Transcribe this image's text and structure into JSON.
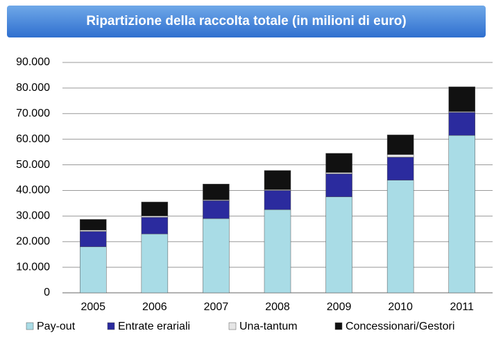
{
  "chart_data": {
    "type": "stacked_bar",
    "title": "Ripartizione della raccolta totale (in milioni di euro)",
    "categories": [
      "2005",
      "2006",
      "2007",
      "2008",
      "2009",
      "2010",
      "2011"
    ],
    "series": [
      {
        "name": "Pay-out",
        "color": "#a9dce6",
        "values": [
          18000,
          23000,
          29000,
          32500,
          37500,
          44000,
          61500
        ]
      },
      {
        "name": "Entrate erariali",
        "color": "#2b2b9e",
        "values": [
          6000,
          6500,
          7000,
          7500,
          9000,
          9000,
          9000
        ]
      },
      {
        "name": "Una-tantum",
        "color": "#e6e6e6",
        "values": [
          500,
          500,
          300,
          300,
          500,
          1000,
          300
        ]
      },
      {
        "name": "Concessionari/Gestori",
        "color": "#111111",
        "values": [
          4200,
          5500,
          6200,
          7500,
          7500,
          7700,
          9700
        ]
      }
    ],
    "ylim": [
      0,
      90000
    ],
    "yticks": [
      0,
      {
        "value": 10000,
        "label": "10.000"
      },
      {
        "value": 20000,
        "label": "20.000"
      },
      {
        "value": 30000,
        "label": "30.000"
      },
      {
        "value": 40000,
        "label": "40.000"
      },
      {
        "value": 50000,
        "label": "50.000"
      },
      {
        "value": 60000,
        "label": "60.000"
      },
      {
        "value": 70000,
        "label": "70.000"
      },
      {
        "value": 80000,
        "label": "80.000"
      },
      {
        "value": 90000,
        "label": "90.000"
      }
    ],
    "grid": true
  }
}
